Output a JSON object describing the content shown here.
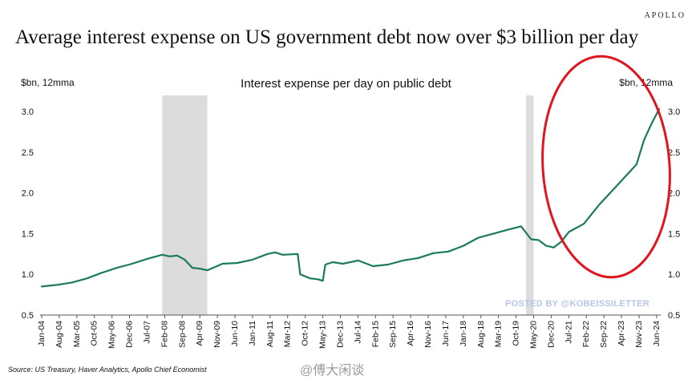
{
  "brand": "APOLLO",
  "chart_data": {
    "type": "line",
    "title": "Average interest expense on US government debt now over $3 billion per day",
    "subtitle": "Interest expense per day on public debt",
    "ylabel_left": "$bn, 12mma",
    "ylabel_right": "$bn, 12mma",
    "ylim": [
      0.5,
      3.0
    ],
    "yticks": [
      "3.0",
      "2.5",
      "2.0",
      "1.5",
      "1.0",
      "0.5"
    ],
    "xticks": [
      "Jan-04",
      "Aug-04",
      "Mar-05",
      "Oct-05",
      "May-06",
      "Dec-06",
      "Jul-07",
      "Feb-08",
      "Sep-08",
      "Apr-09",
      "Nov-09",
      "Jun-10",
      "Jan-11",
      "Aug-11",
      "Mar-12",
      "Oct-12",
      "May-13",
      "Dec-13",
      "Jul-14",
      "Feb-15",
      "Sep-15",
      "Apr-16",
      "Nov-16",
      "Jun-17",
      "Jan-18",
      "Aug-18",
      "Mar-19",
      "Oct-19",
      "May-20",
      "Dec-20",
      "Jul-21",
      "Feb-22",
      "Sep-22",
      "Apr-23",
      "Nov-23",
      "Jun-24"
    ],
    "series": [
      {
        "color": "#1a7a5e",
        "x": [
          "2004-01",
          "2004-07",
          "2005-01",
          "2005-07",
          "2006-01",
          "2006-07",
          "2007-01",
          "2007-07",
          "2008-01",
          "2008-04",
          "2008-07",
          "2008-10",
          "2009-01",
          "2009-04",
          "2009-07",
          "2009-10",
          "2010-01",
          "2010-07",
          "2011-01",
          "2011-07",
          "2011-10",
          "2012-01",
          "2012-07",
          "2012-08",
          "2012-12",
          "2013-03",
          "2013-05",
          "2013-06",
          "2013-09",
          "2014-01",
          "2014-07",
          "2015-01",
          "2015-07",
          "2016-01",
          "2016-07",
          "2017-01",
          "2017-07",
          "2018-01",
          "2018-07",
          "2019-01",
          "2019-07",
          "2019-12",
          "2020-04",
          "2020-07",
          "2020-10",
          "2021-01",
          "2021-04",
          "2021-07",
          "2022-01",
          "2022-07",
          "2023-01",
          "2023-07",
          "2023-10",
          "2024-01",
          "2024-04",
          "2024-07"
        ],
        "values": [
          0.85,
          0.87,
          0.9,
          0.95,
          1.02,
          1.08,
          1.13,
          1.19,
          1.24,
          1.22,
          1.23,
          1.18,
          1.08,
          1.07,
          1.05,
          1.09,
          1.13,
          1.14,
          1.18,
          1.25,
          1.27,
          1.24,
          1.25,
          1.0,
          0.95,
          0.94,
          0.92,
          1.12,
          1.15,
          1.13,
          1.17,
          1.1,
          1.12,
          1.17,
          1.2,
          1.26,
          1.28,
          1.35,
          1.45,
          1.5,
          1.55,
          1.59,
          1.43,
          1.42,
          1.35,
          1.33,
          1.4,
          1.52,
          1.62,
          1.85,
          2.05,
          2.25,
          2.35,
          2.65,
          2.85,
          3.03
        ]
      }
    ],
    "recessions": [
      [
        "2008-01",
        "2009-07"
      ],
      [
        "2020-02",
        "2020-05"
      ]
    ],
    "grid": false
  },
  "source": "Source: US Treasury, Haver Analytics, Apollo Chief Economist",
  "watermark_posted": "POSTED BY @KOBEISSILETTER",
  "watermark_weibo": "@傅大闲谈",
  "colors": {
    "line": "#1a7a5e",
    "recession": "#dcdcdc",
    "annotation": "#e0161e",
    "posted": "#b8c6e6"
  }
}
